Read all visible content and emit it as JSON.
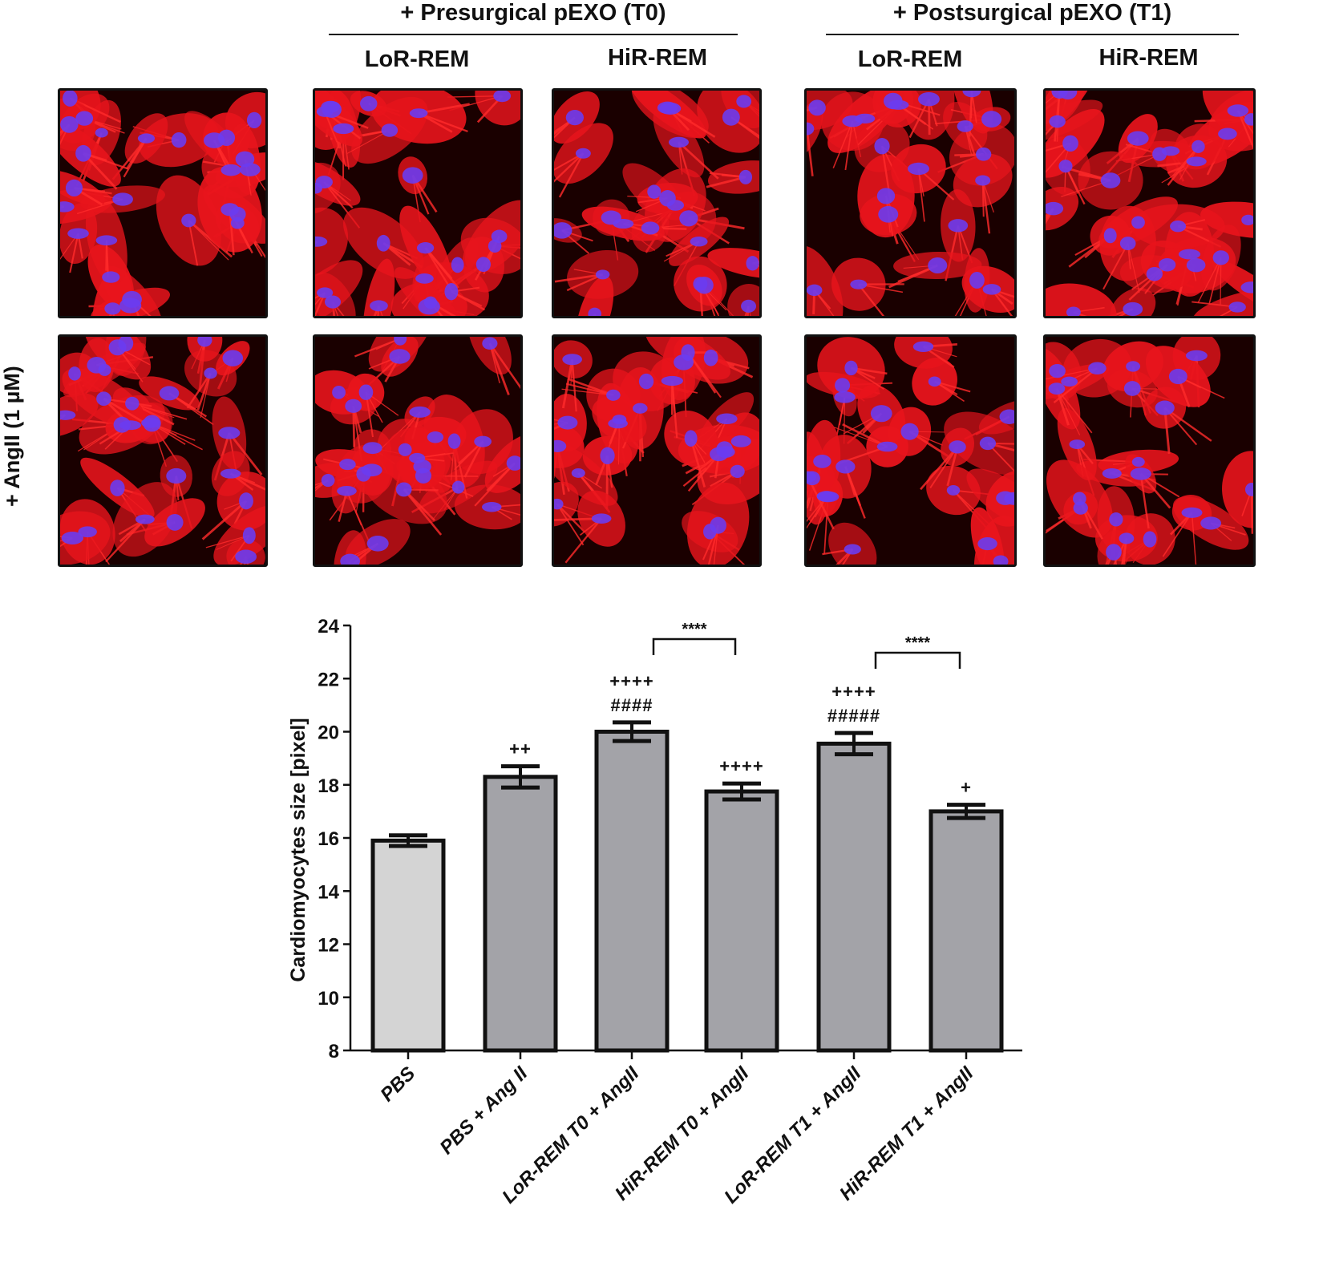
{
  "header": {
    "groups": [
      {
        "label": "+ Presurgical  pEXO (T0)"
      },
      {
        "label": "+ Postsurgical  pEXO (T1)"
      }
    ],
    "columns": [
      "LoR-REM",
      "HiR-REM",
      "LoR-REM",
      "HiR-REM"
    ],
    "row_label": "+ AngII (1 µM)"
  },
  "panels": [
    {
      "name": "control-top",
      "row": 0,
      "col": 0,
      "seed": 1
    },
    {
      "name": "t0-lor-top",
      "row": 0,
      "col": 1,
      "seed": 2
    },
    {
      "name": "t0-hir-top",
      "row": 0,
      "col": 2,
      "seed": 3
    },
    {
      "name": "t1-lor-top",
      "row": 0,
      "col": 3,
      "seed": 4
    },
    {
      "name": "t1-hir-top",
      "row": 0,
      "col": 4,
      "seed": 5
    },
    {
      "name": "control-bottom",
      "row": 1,
      "col": 0,
      "seed": 6
    },
    {
      "name": "t0-lor-bottom",
      "row": 1,
      "col": 1,
      "seed": 7
    },
    {
      "name": "t0-hir-bottom",
      "row": 1,
      "col": 2,
      "seed": 8
    },
    {
      "name": "t1-lor-bottom",
      "row": 1,
      "col": 3,
      "seed": 9
    },
    {
      "name": "t1-hir-bottom",
      "row": 1,
      "col": 4,
      "seed": 10
    }
  ],
  "colors": {
    "cytoplasm": "#e8141c",
    "nucleus": "#6a3cf0",
    "background": "#1a0000",
    "bar_control": "#d4d4d4",
    "bar_treated": "#a3a3a8",
    "axis": "#111111"
  },
  "chart_data": {
    "type": "bar",
    "title": "",
    "xlabel": "",
    "ylabel": "Cardiomyocytes size [pixel]",
    "ylim": [
      8,
      24
    ],
    "yticks": [
      8,
      10,
      12,
      14,
      16,
      18,
      20,
      22,
      24
    ],
    "grid": false,
    "categories": [
      "PBS",
      "PBS + Ang II",
      "LoR-REM T0 + AngII",
      "HiR-REM T0 + AngII",
      "LoR-REM T1 + AngII",
      "HiR-REM T1 + AngII"
    ],
    "values": [
      15.9,
      18.3,
      20.0,
      17.75,
      19.55,
      17.0
    ],
    "errors": [
      0.2,
      0.4,
      0.35,
      0.3,
      0.4,
      0.25
    ],
    "bar_colors": [
      "#d4d4d4",
      "#a3a3a8",
      "#a3a3a8",
      "#a3a3a8",
      "#a3a3a8",
      "#a3a3a8"
    ],
    "annotations": [
      {
        "category": "PBS + Ang II",
        "lines": [
          "++"
        ]
      },
      {
        "category": "LoR-REM T0 + AngII",
        "lines": [
          "++++",
          "####"
        ]
      },
      {
        "category": "HiR-REM T0 + AngII",
        "lines": [
          "++++"
        ]
      },
      {
        "category": "LoR-REM T1 + AngII",
        "lines": [
          "++++",
          "#####"
        ]
      },
      {
        "category": "HiR-REM T1 + AngII",
        "lines": [
          "+"
        ]
      }
    ],
    "brackets": [
      {
        "from": "LoR-REM T0 + AngII",
        "to": "HiR-REM T0 + AngII",
        "label": "****"
      },
      {
        "from": "LoR-REM T1 + AngII",
        "to": "HiR-REM T1 + AngII",
        "label": "****"
      }
    ]
  }
}
